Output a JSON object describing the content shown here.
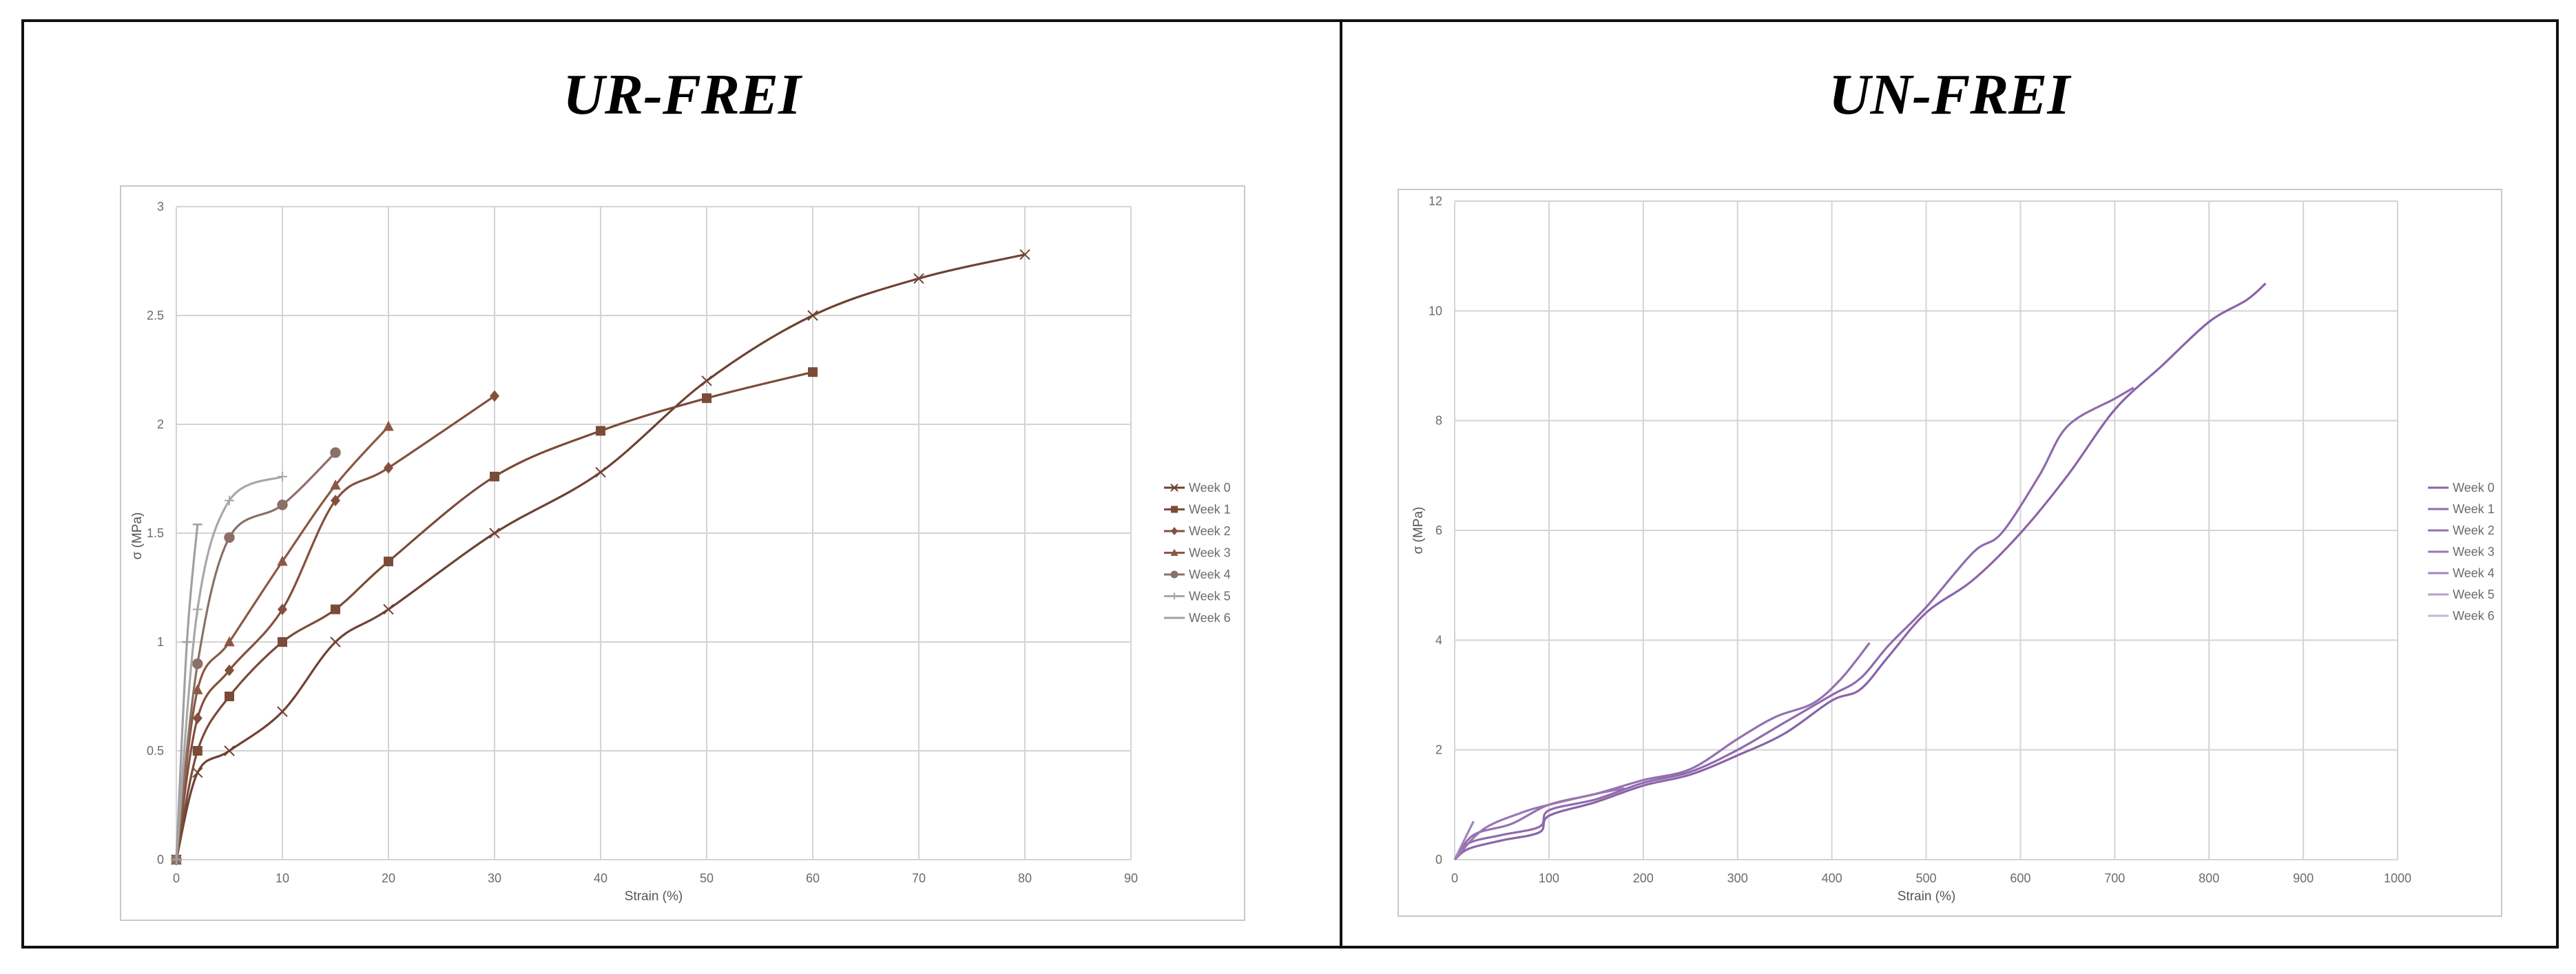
{
  "colors": {
    "border": "#111111",
    "grid": "#d4d4d4",
    "chart_border": "#c8c8c8",
    "left_series": [
      "#6e4233",
      "#7b4b39",
      "#83503d",
      "#8b5844",
      "#8a7068",
      "#a8a8a8",
      "#a0a0a0"
    ],
    "right_series": [
      "#8a63a8",
      "#8f6aad",
      "#9370b0",
      "#9877b4",
      "#a085bb",
      "#b6a1c9",
      "#c4b5d3"
    ]
  },
  "chart_data": [
    {
      "type": "line",
      "title": "UR-FREI",
      "xlabel": "Strain (%)",
      "ylabel": "σ (MPa)",
      "xlim": [
        0,
        90
      ],
      "ylim": [
        0,
        3
      ],
      "xticks": [
        0,
        10,
        20,
        30,
        40,
        50,
        60,
        70,
        80,
        90
      ],
      "yticks": [
        0,
        0.5,
        1,
        1.5,
        2,
        2.5,
        3
      ],
      "xtick_labels": [
        "0",
        "10",
        "20",
        "30",
        "40",
        "50",
        "60",
        "70",
        "80",
        "90"
      ],
      "ytick_labels": [
        "0",
        "0.5",
        "1",
        "1.5",
        "2",
        "2.5",
        "3"
      ],
      "grid": true,
      "legend": "right",
      "series": [
        {
          "name": "Week 0",
          "marker": "x",
          "x": [
            0,
            2,
            5,
            10,
            15,
            20,
            30,
            40,
            50,
            60,
            70,
            80
          ],
          "y": [
            0,
            0.4,
            0.5,
            0.68,
            1.0,
            1.15,
            1.5,
            1.78,
            2.2,
            2.5,
            2.67,
            2.78
          ]
        },
        {
          "name": "Week 1",
          "marker": "square",
          "x": [
            0,
            2,
            5,
            10,
            15,
            20,
            30,
            40,
            50,
            60
          ],
          "y": [
            0,
            0.5,
            0.75,
            1.0,
            1.15,
            1.37,
            1.76,
            1.97,
            2.12,
            2.24
          ]
        },
        {
          "name": "Week 2",
          "marker": "diamond",
          "x": [
            0,
            2,
            5,
            10,
            15,
            20,
            30
          ],
          "y": [
            0,
            0.65,
            0.87,
            1.15,
            1.65,
            1.8,
            2.13
          ]
        },
        {
          "name": "Week 3",
          "marker": "triangle",
          "x": [
            0,
            2,
            5,
            10,
            15,
            20
          ],
          "y": [
            0,
            0.78,
            1.0,
            1.37,
            1.72,
            1.99
          ]
        },
        {
          "name": "Week 4",
          "marker": "circle",
          "x": [
            0,
            2,
            5,
            10,
            15
          ],
          "y": [
            0,
            0.9,
            1.48,
            1.63,
            1.87
          ]
        },
        {
          "name": "Week 5",
          "marker": "plus",
          "x": [
            0,
            2,
            5,
            10
          ],
          "y": [
            0,
            1.15,
            1.65,
            1.76
          ]
        },
        {
          "name": "Week 6",
          "marker": "dash",
          "x": [
            0,
            1,
            2
          ],
          "y": [
            0,
            1.0,
            1.54
          ]
        }
      ]
    },
    {
      "type": "line",
      "title": "UN-FREI",
      "xlabel": "Strain (%)",
      "ylabel": "σ (MPa)",
      "xlim": [
        0,
        1000
      ],
      "ylim": [
        0,
        12
      ],
      "xticks": [
        0,
        100,
        200,
        300,
        400,
        500,
        600,
        700,
        800,
        900,
        1000
      ],
      "yticks": [
        0,
        2,
        4,
        6,
        8,
        10,
        12
      ],
      "xtick_labels": [
        "0",
        "100",
        "200",
        "300",
        "400",
        "500",
        "600",
        "700",
        "800",
        "900",
        "1000"
      ],
      "ytick_labels": [
        "0",
        "2",
        "4",
        "6",
        "8",
        "10",
        "12"
      ],
      "grid": true,
      "legend": "right",
      "series": [
        {
          "name": "Week 0",
          "x": [
            0,
            15,
            50,
            90,
            100,
            150,
            200,
            250,
            300,
            350,
            400,
            430,
            460,
            500,
            550,
            600,
            650,
            700,
            750,
            800,
            840,
            860
          ],
          "y": [
            0,
            0.2,
            0.35,
            0.5,
            0.8,
            1.05,
            1.35,
            1.55,
            1.9,
            2.3,
            2.9,
            3.1,
            3.7,
            4.5,
            5.1,
            5.95,
            7.0,
            8.2,
            9.0,
            9.8,
            10.2,
            10.5
          ]
        },
        {
          "name": "Week 1",
          "x": [
            0,
            15,
            50,
            90,
            100,
            150,
            200,
            250,
            300,
            350,
            400,
            430,
            460,
            500,
            550,
            580,
            620,
            650,
            700,
            720
          ],
          "y": [
            0,
            0.3,
            0.45,
            0.6,
            0.9,
            1.1,
            1.4,
            1.6,
            2.0,
            2.5,
            3.0,
            3.3,
            3.9,
            4.6,
            5.6,
            5.95,
            7.0,
            7.9,
            8.4,
            8.6
          ]
        },
        {
          "name": "Week 2",
          "x": [
            0,
            20,
            60,
            100,
            150,
            200,
            250,
            300,
            340,
            380,
            410,
            440
          ],
          "y": [
            0,
            0.45,
            0.65,
            1.0,
            1.2,
            1.45,
            1.65,
            2.2,
            2.6,
            2.85,
            3.3,
            3.95
          ]
        },
        {
          "name": "Week 3",
          "x": [
            0,
            30,
            70,
            100,
            150,
            180
          ],
          "y": [
            0,
            0.55,
            0.85,
            1.0,
            1.2,
            1.3
          ]
        },
        {
          "name": "Week 4",
          "x": [
            0,
            20
          ],
          "y": [
            0,
            0.7
          ]
        },
        {
          "name": "Week 5",
          "x": [],
          "y": []
        },
        {
          "name": "Week 6",
          "x": [],
          "y": []
        }
      ]
    }
  ]
}
